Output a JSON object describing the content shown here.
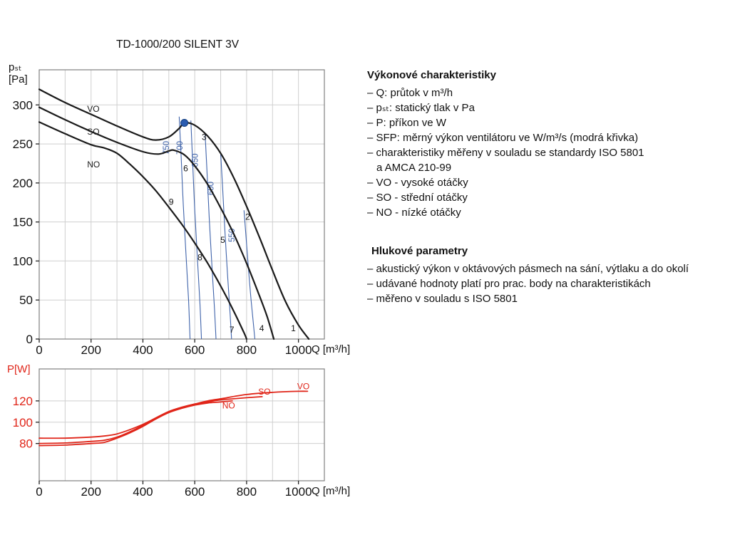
{
  "info": {
    "performance": {
      "heading": "Výkonové charakteristiky",
      "items": [
        "– Q: průtok v m³/h",
        "– pₛₜ: statický tlak v Pa",
        "– P: příkon ve W",
        "– SFP: měrný výkon ventilátoru ve W/m³/s (modrá křivka)",
        "– charakteristiky měřeny v souladu se standardy ISO 5801",
        "a AMCA 210-99",
        "– VO - vysoké otáčky",
        "– SO - střední otáčky",
        "– NO - nízké otáčky"
      ]
    },
    "noise": {
      "heading": "Hlukové parametry",
      "items": [
        "– akustický výkon v oktávových pásmech na sání, výtlaku a do okolí",
        "– udávané hodnoty platí pro prac. body na charakteristikách",
        "– měřeno v souladu s ISO 5801"
      ]
    }
  },
  "chart_data": [
    {
      "id": "pq",
      "type": "line",
      "title": "TD-1000/200 SILENT 3V",
      "xlabel": "Q [m³/h]",
      "ylabel_sym": "pₛₜ",
      "ylabel_unit": "[Pa]",
      "xlim": [
        0,
        1100
      ],
      "ylim": [
        0,
        345
      ],
      "xticks": [
        0,
        200,
        400,
        600,
        800,
        1000
      ],
      "yticks": [
        0,
        50,
        100,
        150,
        200,
        250,
        300
      ],
      "xgrid_step": 100,
      "ygrid": [
        50,
        100,
        150,
        200,
        250,
        300
      ],
      "grid_color": "#cfcfcf",
      "border_color": "#808080",
      "tick_color": "#222222",
      "sfp_color": "#3f63aa",
      "series": [
        {
          "name": "VO",
          "color": "#1a1a1a",
          "width": 2.2,
          "label_at": [
            185,
            291
          ],
          "points": [
            [
              0,
              320
            ],
            [
              100,
              303
            ],
            [
              200,
              288
            ],
            [
              300,
              273
            ],
            [
              400,
              259
            ],
            [
              450,
              255
            ],
            [
              500,
              259
            ],
            [
              540,
              270
            ],
            [
              560,
              277
            ],
            [
              600,
              274
            ],
            [
              650,
              260
            ],
            [
              700,
              238
            ],
            [
              750,
              207
            ],
            [
              800,
              170
            ],
            [
              850,
              130
            ],
            [
              900,
              88
            ],
            [
              950,
              48
            ],
            [
              1000,
              18
            ],
            [
              1040,
              0
            ]
          ]
        },
        {
          "name": "SO",
          "color": "#1a1a1a",
          "width": 2.2,
          "label_at": [
            185,
            262
          ],
          "points": [
            [
              0,
              297
            ],
            [
              100,
              281
            ],
            [
              200,
              266
            ],
            [
              300,
              252
            ],
            [
              400,
              240
            ],
            [
              460,
              237
            ],
            [
              500,
              241
            ],
            [
              520,
              242
            ],
            [
              560,
              236
            ],
            [
              600,
              222
            ],
            [
              650,
              198
            ],
            [
              700,
              168
            ],
            [
              750,
              135
            ],
            [
              800,
              97
            ],
            [
              850,
              55
            ],
            [
              880,
              28
            ],
            [
              905,
              0
            ]
          ]
        },
        {
          "name": "NO",
          "color": "#1a1a1a",
          "width": 2.2,
          "label_at": [
            185,
            220
          ],
          "points": [
            [
              0,
              278
            ],
            [
              100,
              263
            ],
            [
              200,
              249
            ],
            [
              250,
              245
            ],
            [
              300,
              238
            ],
            [
              350,
              224
            ],
            [
              400,
              208
            ],
            [
              450,
              190
            ],
            [
              500,
              169
            ],
            [
              550,
              147
            ],
            [
              600,
              123
            ],
            [
              650,
              97
            ],
            [
              700,
              68
            ],
            [
              750,
              36
            ],
            [
              790,
              8
            ],
            [
              800,
              0
            ]
          ]
        }
      ],
      "sfp_curves": [
        {
          "label": "750",
          "label_at": [
            500,
            245
          ],
          "points": [
            [
              540,
              285
            ],
            [
              548,
              230
            ],
            [
              556,
              170
            ],
            [
              566,
              110
            ],
            [
              576,
              50
            ],
            [
              582,
              0
            ]
          ]
        },
        {
          "label": "700",
          "label_at": [
            553,
            245
          ],
          "points": [
            [
              585,
              280
            ],
            [
              592,
              225
            ],
            [
              600,
              165
            ],
            [
              610,
              105
            ],
            [
              620,
              45
            ],
            [
              626,
              0
            ]
          ]
        },
        {
          "label": "650",
          "label_at": [
            612,
            229
          ],
          "points": [
            [
              640,
              262
            ],
            [
              648,
              210
            ],
            [
              656,
              155
            ],
            [
              666,
              95
            ],
            [
              676,
              40
            ],
            [
              682,
              0
            ]
          ]
        },
        {
          "label": "600",
          "label_at": [
            672,
            193
          ],
          "points": [
            [
              700,
              238
            ],
            [
              708,
              190
            ],
            [
              716,
              140
            ],
            [
              726,
              85
            ],
            [
              736,
              35
            ],
            [
              742,
              0
            ]
          ]
        },
        {
          "label": "550",
          "label_at": [
            754,
            133
          ],
          "points": [
            [
              790,
              165
            ],
            [
              798,
              130
            ],
            [
              806,
              95
            ],
            [
              816,
              55
            ],
            [
              826,
              20
            ],
            [
              832,
              0
            ]
          ]
        }
      ],
      "marker": {
        "x": 560,
        "y": 277,
        "color": "#2b5cb0",
        "edge": "#123c7d"
      },
      "point_labels": [
        {
          "t": "1",
          "x": 971,
          "y": 10
        },
        {
          "t": "2",
          "x": 795,
          "y": 153
        },
        {
          "t": "3",
          "x": 627,
          "y": 255
        },
        {
          "t": "4",
          "x": 849,
          "y": 10
        },
        {
          "t": "5",
          "x": 699,
          "y": 123
        },
        {
          "t": "6",
          "x": 556,
          "y": 215
        },
        {
          "t": "7",
          "x": 734,
          "y": 8
        },
        {
          "t": "8",
          "x": 611,
          "y": 101
        },
        {
          "t": "9",
          "x": 500,
          "y": 172
        }
      ]
    },
    {
      "id": "power",
      "type": "line",
      "xlabel": "Q [m³/h]",
      "ylabel_sym": "P",
      "ylabel_unit": "[W]",
      "xlim": [
        0,
        1100
      ],
      "ylim": [
        45,
        150
      ],
      "xticks": [
        0,
        200,
        400,
        600,
        800,
        1000
      ],
      "yticks": [
        80,
        100,
        120
      ],
      "xgrid_step": 100,
      "ygrid": [
        80,
        100,
        120
      ],
      "grid_color": "#cfcfcf",
      "border_color": "#808080",
      "tick_color": "#222222",
      "ytick_color": "#e02519",
      "series": [
        {
          "name": "NO",
          "color": "#e02519",
          "width": 1.8,
          "label_at": [
            706,
            113
          ],
          "points": [
            [
              0,
              78
            ],
            [
              100,
              78.5
            ],
            [
              200,
              80
            ],
            [
              250,
              81
            ],
            [
              300,
              85
            ],
            [
              350,
              90
            ],
            [
              400,
              96
            ],
            [
              450,
              103
            ],
            [
              500,
              109
            ],
            [
              550,
              113
            ],
            [
              600,
              116
            ],
            [
              650,
              118
            ],
            [
              700,
              119
            ],
            [
              745,
              120
            ]
          ]
        },
        {
          "name": "SO",
          "color": "#e02519",
          "width": 1.8,
          "label_at": [
            845,
            126
          ],
          "points": [
            [
              0,
              80
            ],
            [
              100,
              80.5
            ],
            [
              200,
              82
            ],
            [
              250,
              83
            ],
            [
              300,
              86
            ],
            [
              350,
              91
            ],
            [
              400,
              97
            ],
            [
              450,
              104
            ],
            [
              500,
              110
            ],
            [
              550,
              114
            ],
            [
              600,
              117
            ],
            [
              650,
              119
            ],
            [
              700,
              121
            ],
            [
              750,
              122
            ],
            [
              800,
              123
            ],
            [
              860,
              124
            ]
          ]
        },
        {
          "name": "VO",
          "color": "#e02519",
          "width": 1.8,
          "label_at": [
            995,
            131
          ],
          "points": [
            [
              0,
              85
            ],
            [
              100,
              85
            ],
            [
              200,
              86
            ],
            [
              250,
              87
            ],
            [
              300,
              89
            ],
            [
              350,
              93
            ],
            [
              400,
              98
            ],
            [
              450,
              104
            ],
            [
              500,
              110
            ],
            [
              550,
              114
            ],
            [
              600,
              117
            ],
            [
              650,
              120
            ],
            [
              700,
              122
            ],
            [
              800,
              126
            ],
            [
              900,
              128
            ],
            [
              1000,
              129
            ],
            [
              1035,
              129
            ]
          ]
        }
      ]
    }
  ]
}
